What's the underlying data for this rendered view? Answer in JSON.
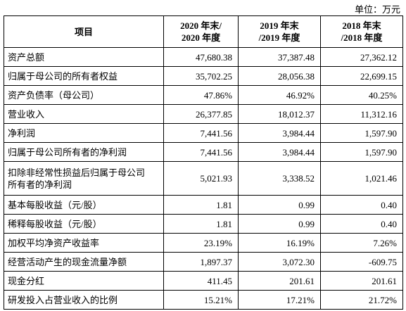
{
  "unit": "单位：万元",
  "table": {
    "header": [
      [
        "项目"
      ],
      [
        "2020 年末/",
        "2020 年度"
      ],
      [
        "2019 年末",
        "/2019 年度"
      ],
      [
        "2018 年末",
        "/2018 年度"
      ]
    ],
    "rows": [
      [
        [
          "资产总额"
        ],
        "47,680.38",
        "37,387.48",
        "27,362.12"
      ],
      [
        [
          "归属于母公司的所有者权益"
        ],
        "35,702.25",
        "28,056.38",
        "22,699.15"
      ],
      [
        [
          "资产负债率（母公司）"
        ],
        "47.86%",
        "46.92%",
        "40.25%"
      ],
      [
        [
          "营业收入"
        ],
        "26,377.85",
        "18,012.37",
        "11,312.16"
      ],
      [
        [
          "净利润"
        ],
        "7,441.56",
        "3,984.44",
        "1,597.90"
      ],
      [
        [
          "归属于母公司所有者的净利润"
        ],
        "7,441.56",
        "3,984.44",
        "1,597.90"
      ],
      [
        [
          "扣除非经常性损益后归属于母公司",
          "所有者的净利润"
        ],
        "5,021.93",
        "3,338.52",
        "1,021.46"
      ],
      [
        [
          "基本每股收益（元/股）"
        ],
        "1.81",
        "0.99",
        "0.40"
      ],
      [
        [
          "稀释每股收益（元/股）"
        ],
        "1.81",
        "0.99",
        "0.40"
      ],
      [
        [
          "加权平均净资产收益率"
        ],
        "23.19%",
        "16.19%",
        "7.26%"
      ],
      [
        [
          "经营活动产生的现金流量净额"
        ],
        "1,897.37",
        "3,072.30",
        "-609.75"
      ],
      [
        [
          "现金分红"
        ],
        "411.45",
        "201.61",
        "201.61"
      ],
      [
        [
          "研发投入占营业收入的比例"
        ],
        "15.21%",
        "17.21%",
        "21.72%"
      ]
    ]
  }
}
